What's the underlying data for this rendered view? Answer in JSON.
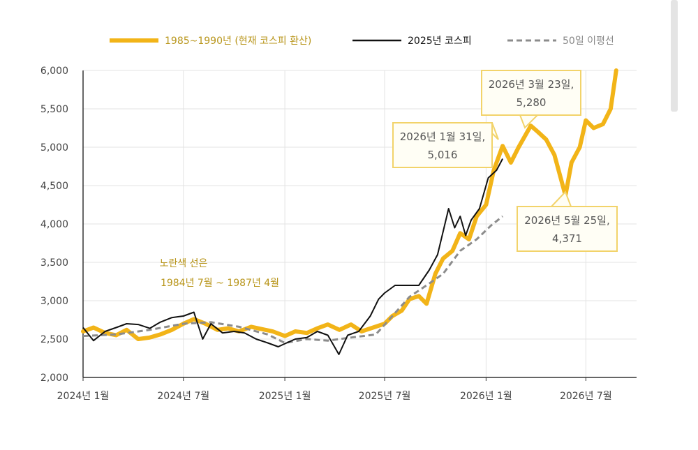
{
  "chart_data": {
    "type": "line",
    "legend_placement": "top",
    "grid": true,
    "ylim": [
      2000,
      6000
    ],
    "xlim": [
      "2024-01-01",
      "2026-10-01"
    ],
    "yticks": [
      2000,
      2500,
      3000,
      3500,
      4000,
      4500,
      5000,
      5500,
      6000
    ],
    "ytick_labels": [
      "2,000",
      "2,500",
      "3,000",
      "3,500",
      "4,000",
      "4,500",
      "5,000",
      "5,500",
      "6,000"
    ],
    "xticks": [
      "2024-01-01",
      "2024-07-01",
      "2025-01-01",
      "2025-07-01",
      "2026-01-01",
      "2026-07-01"
    ],
    "xtick_labels": [
      "2024년 1월",
      "2024년 7월",
      "2025년 1월",
      "2025년 7월",
      "2026년 1월",
      "2026년 7월"
    ],
    "series": [
      {
        "name": "1985~1990년 (현재 코스피 환산)",
        "color": "#f2b418",
        "style": "thick",
        "x": [
          "2024-01-01",
          "2024-01-20",
          "2024-02-10",
          "2024-03-01",
          "2024-03-20",
          "2024-04-10",
          "2024-05-01",
          "2024-05-20",
          "2024-06-10",
          "2024-07-01",
          "2024-07-20",
          "2024-08-10",
          "2024-09-01",
          "2024-09-20",
          "2024-10-10",
          "2024-11-01",
          "2024-11-20",
          "2024-12-10",
          "2025-01-01",
          "2025-01-20",
          "2025-02-10",
          "2025-03-01",
          "2025-03-20",
          "2025-04-10",
          "2025-05-01",
          "2025-05-20",
          "2025-06-10",
          "2025-07-01",
          "2025-07-15",
          "2025-08-01",
          "2025-08-15",
          "2025-09-01",
          "2025-09-15",
          "2025-10-01",
          "2025-10-15",
          "2025-11-01",
          "2025-11-15",
          "2025-12-01",
          "2025-12-15",
          "2026-01-01",
          "2026-01-15",
          "2026-01-31",
          "2026-02-15",
          "2026-03-01",
          "2026-03-23",
          "2026-04-05",
          "2026-04-20",
          "2026-05-05",
          "2026-05-25",
          "2026-06-05",
          "2026-06-20",
          "2026-07-01",
          "2026-07-15",
          "2026-08-01",
          "2026-08-15",
          "2026-08-25"
        ],
        "values": [
          2600,
          2650,
          2580,
          2550,
          2620,
          2500,
          2520,
          2560,
          2620,
          2700,
          2760,
          2700,
          2620,
          2640,
          2600,
          2660,
          2630,
          2600,
          2540,
          2600,
          2580,
          2640,
          2690,
          2620,
          2690,
          2600,
          2650,
          2700,
          2800,
          2870,
          3020,
          3060,
          2960,
          3350,
          3550,
          3650,
          3880,
          3800,
          4100,
          4250,
          4700,
          5016,
          4800,
          5000,
          5280,
          5200,
          5100,
          4900,
          4371,
          4800,
          5000,
          5350,
          5250,
          5300,
          5500,
          6000
        ]
      },
      {
        "name": "2025년 코스피",
        "color": "#111111",
        "style": "thin",
        "x": [
          "2024-01-01",
          "2024-01-20",
          "2024-02-10",
          "2024-03-01",
          "2024-03-20",
          "2024-04-10",
          "2024-05-01",
          "2024-05-20",
          "2024-06-10",
          "2024-07-01",
          "2024-07-20",
          "2024-08-05",
          "2024-08-20",
          "2024-09-10",
          "2024-10-01",
          "2024-10-20",
          "2024-11-10",
          "2024-12-01",
          "2024-12-20",
          "2025-01-01",
          "2025-01-20",
          "2025-02-10",
          "2025-03-01",
          "2025-03-20",
          "2025-04-09",
          "2025-04-25",
          "2025-05-15",
          "2025-06-05",
          "2025-06-20",
          "2025-07-01",
          "2025-07-20",
          "2025-08-10",
          "2025-09-01",
          "2025-09-20",
          "2025-10-05",
          "2025-10-25",
          "2025-11-05",
          "2025-11-15",
          "2025-11-25",
          "2025-12-05",
          "2025-12-20",
          "2026-01-05",
          "2026-01-20",
          "2026-01-31"
        ],
        "values": [
          2650,
          2480,
          2600,
          2650,
          2700,
          2690,
          2640,
          2720,
          2780,
          2800,
          2850,
          2500,
          2700,
          2580,
          2600,
          2580,
          2500,
          2450,
          2400,
          2440,
          2500,
          2520,
          2600,
          2550,
          2300,
          2550,
          2600,
          2800,
          3020,
          3100,
          3200,
          3200,
          3200,
          3400,
          3600,
          4200,
          3950,
          4100,
          3850,
          4050,
          4200,
          4600,
          4700,
          4850
        ]
      },
      {
        "name": "50일 이평선",
        "color": "#8c8c8c",
        "style": "dashed",
        "x": [
          "2024-01-01",
          "2024-03-01",
          "2024-05-01",
          "2024-07-01",
          "2024-08-20",
          "2024-10-10",
          "2024-12-01",
          "2025-01-01",
          "2025-02-10",
          "2025-03-20",
          "2025-05-01",
          "2025-06-15",
          "2025-07-15",
          "2025-08-15",
          "2025-09-15",
          "2025-10-15",
          "2025-11-15",
          "2025-12-15",
          "2026-01-10",
          "2026-01-31"
        ],
        "values": [
          2540,
          2560,
          2620,
          2700,
          2720,
          2660,
          2560,
          2450,
          2500,
          2480,
          2520,
          2560,
          2800,
          3050,
          3200,
          3350,
          3650,
          3800,
          3980,
          4100
        ]
      }
    ],
    "annotations": [
      {
        "id": "jan31",
        "line1": "2026년 1월 31일,",
        "line2": "5,016"
      },
      {
        "id": "mar23",
        "line1": "2026년 3월 23일,",
        "line2": "5,280"
      },
      {
        "id": "may25",
        "line1": "2026년 5월 25일,",
        "line2": "4,371"
      }
    ],
    "note": {
      "line1": "노란색 선은",
      "line2": "1984년 7월 ~ 1987년 4월"
    }
  }
}
